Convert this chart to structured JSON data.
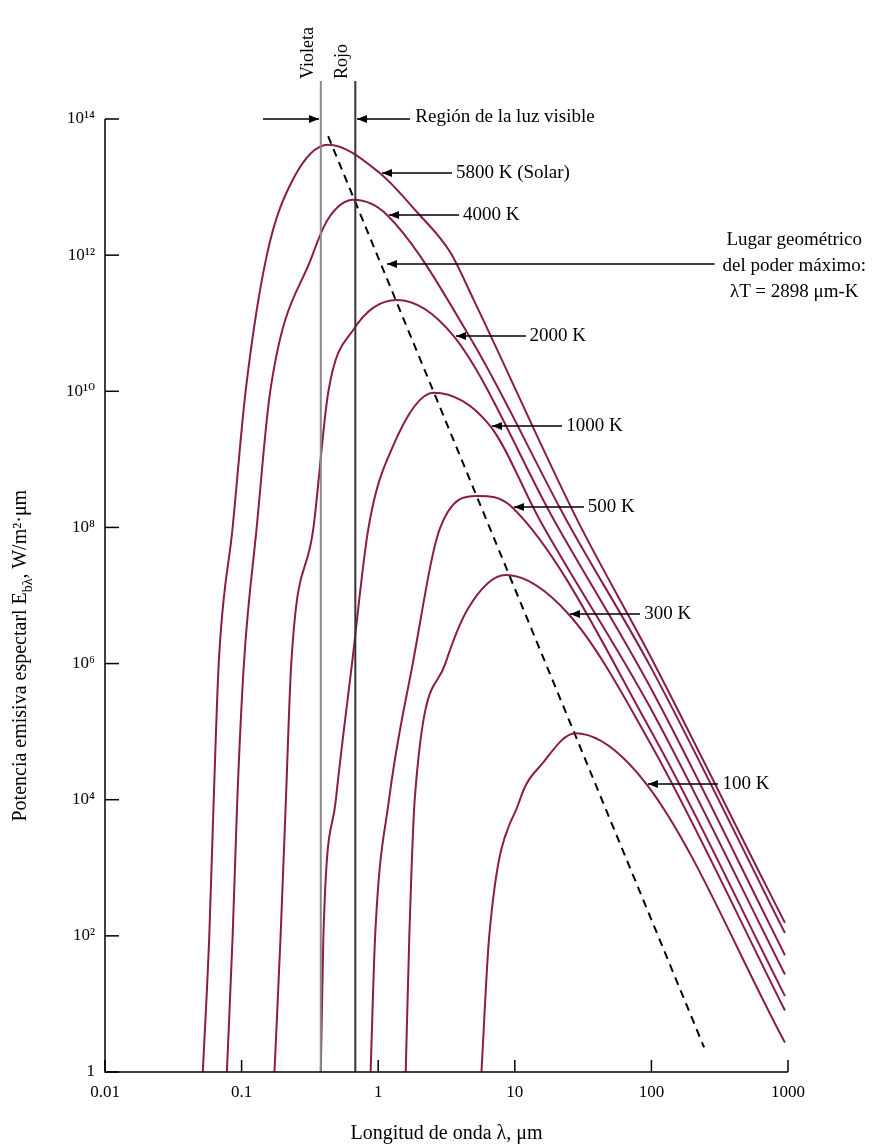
{
  "chart_data": {
    "type": "line",
    "xlabel": "Longitud de onda λ, μm",
    "ylabel": "Potencia emisiva espectarl E$_{bλ}$, W/m²·μm",
    "log": "xy",
    "xlim": [
      0.01,
      1000
    ],
    "ylim": [
      1,
      100000000000000.0
    ],
    "xticks": [
      0.01,
      0.1,
      1,
      10,
      100,
      1000
    ],
    "yticks": [
      1,
      {
        "value": 100,
        "label": "10²"
      },
      {
        "value": 10000,
        "label": "10⁴"
      },
      {
        "value": 1000000.0,
        "label": "10⁶"
      },
      {
        "value": 100000000.0,
        "label": "10⁸"
      },
      {
        "value": 10000000000.0,
        "label": "10¹⁰"
      },
      {
        "value": 1000000000000.0,
        "label": "10¹²"
      },
      {
        "value": 100000000000000.0,
        "label": "10¹⁴"
      }
    ],
    "marker": "none",
    "line_style": "solid",
    "series": [
      {
        "color": "#8b1a4f",
        "x": [
          0.052,
          0.058,
          0.0625,
          0.068,
          0.086,
          0.107,
          0.153,
          0.238,
          0.43,
          1.03,
          1.92,
          3.37,
          5.0,
          28.6,
          100,
          640,
          950
        ],
        "values": [
          1,
          100,
          10000.0,
          1000000.0,
          100000000.0,
          10000000000.0,
          1000000000000.0,
          13000000000000.0,
          42000000000000.0,
          16000000000000.0,
          4300000000000.0,
          1100000000000.0,
          220000000000.0,
          130000000.0,
          1200000.0,
          740,
          155
        ]
      },
      {
        "color": "#8b1a4f",
        "x": [
          0.078,
          0.086,
          0.093,
          0.104,
          0.129,
          0.162,
          0.33,
          0.43,
          0.66,
          1.16,
          5.0,
          23.8,
          100,
          950
        ],
        "values": [
          1,
          100,
          10000.0,
          1000000.0,
          100000000.0,
          10000000000.0,
          1000000000000.0,
          3400000000000.0,
          6500000000000.0,
          3900000000000.0,
          50000000000.0,
          130000000.0,
          850000.0,
          110
        ]
      },
      {
        "color": "#8b1a4f",
        "x": [
          0.174,
          0.193,
          0.211,
          0.231,
          0.336,
          0.432,
          0.66,
          1.37,
          3.56,
          19.3,
          100,
          950
        ],
        "values": [
          1,
          100,
          10000.0,
          1000000.0,
          100000000.0,
          10000000000.0,
          81000000000.0,
          220000000000.0,
          65000000000.0,
          130000000.0,
          420000.0,
          52
        ]
      },
      {
        "color": "#8b1a4f",
        "x": [
          0.38,
          0.397,
          0.49,
          0.643,
          0.85,
          1.29,
          2.54,
          6.6,
          15.2,
          100,
          950
        ],
        "values": [
          1,
          100,
          10000.0,
          1000000.0,
          100000000.0,
          1600000000.0,
          9500000000.0,
          3100000000.0,
          130000000.0,
          210000.0,
          27
        ]
      },
      {
        "color": "#8b1a4f",
        "x": [
          0.88,
          0.95,
          1.2,
          1.79,
          2.85,
          5.3,
          9.5,
          100,
          950
        ],
        "values": [
          1,
          100,
          10000.0,
          1000000.0,
          100000000.0,
          290000000.0,
          200000000.0,
          100000.0,
          13
        ]
      },
      {
        "color": "#8b1a4f",
        "x": [
          1.59,
          1.69,
          1.85,
          3.1,
          4.56,
          8.6,
          24.6,
          100,
          950
        ],
        "values": [
          1,
          100,
          10000.0,
          1000000.0,
          6500000.0,
          20000000.0,
          5400000.0,
          63000.0,
          8
        ]
      },
      {
        "color": "#8b1a4f",
        "x": [
          5.7,
          6.5,
          10.9,
          16.1,
          27.7,
          92,
          950
        ],
        "values": [
          1,
          100,
          10000.0,
          35000.0,
          95000.0,
          17000.0,
          2.7
        ]
      },
      {
        "color": "#000000",
        "line_style": "dashed",
        "x": [
          0.43,
          243
        ],
        "values": [
          56000000000000.0,
          2.3
        ]
      }
    ],
    "ref_lines": [
      {
        "axis": "x",
        "value": 0.38,
        "label": "Violeta",
        "color": "#8a8a8a"
      },
      {
        "axis": "x",
        "value": 0.68,
        "label": "Rojo",
        "color": "#333333"
      }
    ],
    "annotations": [
      "Región de la luz visible",
      "5800 K (Solar)",
      "4000 K",
      {
        "text": "Lugar geométrico\ndel poder máximo:\nλT = 2898 μm-K",
        "x": 1.12,
        "y": 740000000000.0
      },
      "2000 K",
      "1000 K",
      "500 K",
      "300 K",
      "100 K"
    ]
  }
}
